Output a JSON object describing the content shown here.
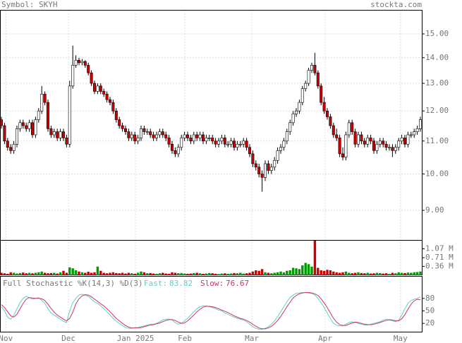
{
  "header": {
    "symbol": "Symbol: SKYH",
    "site": "stockta.com"
  },
  "chart_data": [
    {
      "type": "candlestick",
      "log_scale": true,
      "grid": true,
      "up_color": "#ffffff",
      "down_color": "#cc0000",
      "ylim": [
        8.26,
        16.08
      ],
      "yticks": [
        {
          "value": 15,
          "label": "15.00"
        },
        {
          "value": 14,
          "label": "14.00"
        },
        {
          "value": 13,
          "label": "13.00"
        },
        {
          "value": 12,
          "label": "12.00"
        },
        {
          "value": 11,
          "label": "11.00"
        },
        {
          "value": 10,
          "label": "10.00"
        },
        {
          "value": 9,
          "label": "9.00"
        }
      ],
      "xticks": [
        {
          "value": 1.4,
          "label": "Nov"
        },
        {
          "value": 21.6,
          "label": "Dec"
        },
        {
          "value": 43.2,
          "label": "Jan 2025"
        },
        {
          "value": 59.1,
          "label": "Feb"
        },
        {
          "value": 80.7,
          "label": "Mar"
        },
        {
          "value": 104.3,
          "label": "Apr"
        },
        {
          "value": 128.6,
          "label": "May"
        }
      ],
      "open": [
        11.7,
        11.5,
        11.0,
        10.8,
        10.7,
        10.9,
        11.4,
        11.6,
        11.5,
        11.4,
        11.6,
        11.2,
        11.7,
        12.0,
        12.6,
        12.3,
        11.4,
        11.2,
        11.3,
        11.1,
        11.3,
        11.1,
        10.9,
        12.9,
        13.7,
        13.9,
        13.8,
        13.85,
        13.7,
        13.4,
        13.0,
        12.7,
        12.9,
        12.7,
        12.6,
        12.4,
        12.3,
        12.0,
        11.7,
        11.5,
        11.4,
        11.3,
        11.1,
        11.2,
        11.0,
        11.1,
        11.4,
        11.3,
        11.3,
        11.2,
        11.1,
        11.2,
        11.3,
        11.2,
        11.1,
        10.9,
        10.7,
        10.6,
        10.8,
        11.1,
        11.2,
        11.1,
        11.0,
        11.2,
        11.1,
        11.2,
        11.0,
        11.1,
        11.1,
        11.0,
        10.9,
        11.0,
        11.1,
        10.9,
        10.9,
        11.0,
        10.8,
        10.9,
        10.9,
        11.0,
        10.8,
        10.6,
        10.3,
        10.2,
        10.0,
        9.9,
        10.3,
        10.1,
        10.2,
        10.4,
        10.7,
        10.8,
        11.0,
        11.3,
        11.6,
        11.9,
        12.0,
        12.3,
        12.8,
        13.0,
        13.5,
        13.7,
        13.4,
        12.9,
        12.3,
        12.0,
        11.8,
        11.5,
        11.2,
        11.1,
        10.6,
        10.5,
        11.2,
        11.6,
        11.3,
        10.9,
        11.2,
        11.0,
        10.9,
        11.1,
        11.0,
        10.7,
        10.9,
        11.0,
        10.9,
        10.8,
        10.8,
        10.7,
        10.8,
        11.0,
        11.1,
        10.9,
        11.2,
        11.2,
        11.3,
        11.4
      ],
      "high": [
        11.8,
        11.6,
        11.1,
        10.9,
        11.0,
        11.5,
        11.7,
        11.7,
        11.6,
        11.7,
        11.7,
        11.8,
        12.1,
        12.9,
        12.7,
        12.4,
        11.5,
        11.4,
        11.4,
        11.4,
        11.4,
        11.2,
        13.1,
        14.5,
        14.1,
        14.0,
        13.95,
        13.9,
        13.8,
        13.5,
        13.1,
        13.0,
        13.0,
        12.8,
        12.7,
        12.5,
        12.4,
        12.1,
        11.8,
        11.6,
        11.5,
        11.4,
        11.3,
        11.3,
        11.2,
        11.5,
        11.5,
        11.4,
        11.4,
        11.3,
        11.3,
        11.4,
        11.4,
        11.3,
        11.2,
        11.0,
        10.8,
        10.9,
        11.2,
        11.3,
        11.3,
        11.2,
        11.3,
        11.3,
        11.3,
        11.3,
        11.2,
        11.2,
        11.2,
        11.1,
        11.1,
        11.2,
        11.2,
        11.0,
        11.1,
        11.1,
        11.0,
        11.0,
        11.1,
        11.1,
        10.9,
        10.7,
        10.4,
        10.3,
        10.1,
        10.4,
        10.4,
        10.3,
        10.5,
        10.8,
        10.9,
        11.1,
        11.4,
        11.7,
        12.0,
        12.1,
        12.4,
        12.9,
        13.1,
        13.6,
        13.8,
        14.2,
        13.5,
        13.0,
        12.5,
        12.1,
        11.9,
        11.6,
        11.4,
        11.2,
        10.8,
        11.3,
        11.7,
        11.7,
        11.4,
        11.3,
        11.3,
        11.1,
        11.2,
        11.2,
        11.1,
        11.0,
        11.1,
        11.1,
        11.0,
        10.9,
        10.9,
        10.9,
        11.1,
        11.2,
        11.2,
        11.3,
        11.3,
        11.4,
        11.5,
        11.8
      ],
      "low": [
        11.4,
        10.9,
        10.7,
        10.6,
        10.6,
        10.8,
        11.3,
        11.4,
        11.3,
        11.3,
        11.1,
        11.1,
        11.6,
        11.9,
        12.2,
        11.3,
        11.1,
        11.1,
        11.0,
        11.0,
        11.0,
        10.8,
        10.8,
        12.8,
        13.6,
        13.7,
        13.7,
        13.6,
        13.3,
        12.9,
        12.6,
        12.6,
        12.6,
        12.5,
        12.3,
        12.2,
        11.9,
        11.6,
        11.4,
        11.3,
        11.2,
        11.0,
        11.0,
        10.9,
        10.9,
        11.0,
        11.2,
        11.2,
        11.1,
        11.0,
        11.0,
        11.1,
        11.1,
        11.0,
        10.8,
        10.6,
        10.5,
        10.5,
        10.7,
        11.0,
        11.0,
        10.9,
        10.9,
        11.0,
        11.0,
        10.9,
        10.9,
        11.0,
        10.9,
        10.8,
        10.8,
        10.9,
        10.8,
        10.8,
        10.8,
        10.7,
        10.7,
        10.8,
        10.8,
        10.7,
        10.5,
        10.2,
        10.1,
        9.9,
        9.5,
        9.8,
        10.0,
        10.0,
        10.1,
        10.3,
        10.6,
        10.7,
        10.9,
        11.2,
        11.5,
        11.8,
        11.9,
        12.2,
        12.7,
        12.9,
        13.4,
        13.3,
        12.8,
        12.2,
        11.9,
        11.7,
        11.4,
        11.1,
        11.0,
        10.5,
        10.4,
        10.4,
        11.1,
        11.2,
        10.8,
        10.8,
        10.9,
        10.8,
        10.8,
        10.9,
        10.6,
        10.6,
        10.8,
        10.8,
        10.7,
        10.7,
        10.5,
        10.6,
        10.7,
        10.9,
        10.8,
        10.8,
        11.1,
        11.1,
        11.2,
        11.3
      ],
      "close": [
        11.5,
        11.0,
        10.8,
        10.7,
        10.9,
        11.4,
        11.6,
        11.5,
        11.4,
        11.6,
        11.2,
        11.7,
        12.0,
        12.6,
        12.3,
        11.4,
        11.2,
        11.3,
        11.1,
        11.3,
        11.1,
        10.9,
        12.9,
        13.7,
        13.9,
        13.8,
        13.85,
        13.7,
        13.4,
        13.0,
        12.7,
        12.9,
        12.7,
        12.6,
        12.4,
        12.3,
        12.0,
        11.7,
        11.5,
        11.4,
        11.3,
        11.1,
        11.2,
        11.0,
        11.1,
        11.4,
        11.3,
        11.3,
        11.2,
        11.1,
        11.2,
        11.3,
        11.2,
        11.1,
        10.9,
        10.7,
        10.6,
        10.8,
        11.1,
        11.2,
        11.1,
        11.0,
        11.2,
        11.1,
        11.2,
        11.0,
        11.1,
        11.1,
        11.0,
        10.9,
        11.0,
        11.1,
        10.9,
        10.9,
        11.0,
        10.8,
        10.9,
        10.9,
        11.0,
        10.8,
        10.6,
        10.3,
        10.2,
        10.0,
        9.9,
        10.3,
        10.1,
        10.2,
        10.4,
        10.7,
        10.8,
        11.0,
        11.3,
        11.6,
        11.9,
        12.0,
        12.3,
        12.8,
        13.0,
        13.5,
        13.7,
        13.4,
        12.9,
        12.3,
        12.0,
        11.8,
        11.5,
        11.2,
        11.1,
        10.6,
        10.5,
        11.2,
        11.6,
        11.3,
        10.9,
        11.2,
        11.0,
        10.9,
        11.1,
        11.0,
        10.7,
        10.9,
        11.0,
        10.9,
        10.8,
        10.8,
        10.7,
        10.8,
        11.0,
        11.1,
        10.9,
        11.2,
        11.2,
        11.3,
        11.4,
        11.7
      ]
    },
    {
      "type": "volume",
      "up_color": "#009900",
      "down_color": "#cc0000",
      "ylim": [
        0,
        1.4
      ],
      "yticks": [
        {
          "value": 1.07,
          "label": "1.07 M"
        },
        {
          "value": 0.71,
          "label": "0.71 M"
        },
        {
          "value": 0.36,
          "label": "0.36 M"
        }
      ],
      "values": [
        0.1,
        0.08,
        0.06,
        0.12,
        0.1,
        0.07,
        0.09,
        0.11,
        0.08,
        0.1,
        0.08,
        0.1,
        0.12,
        0.15,
        0.1,
        0.08,
        0.09,
        0.1,
        0.07,
        0.12,
        0.18,
        0.1,
        0.32,
        0.28,
        0.2,
        0.15,
        0.12,
        0.1,
        0.14,
        0.1,
        0.12,
        0.35,
        0.18,
        0.1,
        0.08,
        0.1,
        0.12,
        0.09,
        0.08,
        0.1,
        0.07,
        0.1,
        0.08,
        0.06,
        0.1,
        0.15,
        0.12,
        0.08,
        0.09,
        0.07,
        0.06,
        0.08,
        0.1,
        0.07,
        0.06,
        0.12,
        0.1,
        0.08,
        0.09,
        0.07,
        0.06,
        0.07,
        0.09,
        0.1,
        0.08,
        0.06,
        0.07,
        0.09,
        0.08,
        0.06,
        0.05,
        0.07,
        0.08,
        0.06,
        0.07,
        0.09,
        0.08,
        0.1,
        0.07,
        0.08,
        0.1,
        0.15,
        0.2,
        0.18,
        0.25,
        0.12,
        0.1,
        0.08,
        0.1,
        0.12,
        0.15,
        0.12,
        0.18,
        0.2,
        0.3,
        0.28,
        0.25,
        0.4,
        0.5,
        0.45,
        0.35,
        1.4,
        0.3,
        0.2,
        0.18,
        0.22,
        0.2,
        0.15,
        0.12,
        0.1,
        0.12,
        0.15,
        0.1,
        0.08,
        0.1,
        0.12,
        0.09,
        0.08,
        0.1,
        0.07,
        0.08,
        0.1,
        0.09,
        0.07,
        0.08,
        0.06,
        0.1,
        0.08,
        0.12,
        0.1,
        0.09,
        0.11,
        0.1,
        0.12,
        0.13,
        0.15
      ]
    },
    {
      "type": "stochastic",
      "title": "Full Stochastic %K(14,3) %D(3)",
      "ylim": [
        0,
        100
      ],
      "yticks": [
        80,
        50,
        20
      ],
      "series": [
        {
          "name": "Fast:",
          "color": "#66cccc",
          "last": 83.82,
          "values": [
            60,
            50,
            35,
            30,
            40,
            55,
            70,
            80,
            85,
            82,
            78,
            80,
            82,
            75,
            68,
            55,
            45,
            40,
            35,
            30,
            25,
            22,
            50,
            70,
            80,
            88,
            90,
            88,
            85,
            78,
            72,
            68,
            62,
            55,
            48,
            40,
            32,
            25,
            20,
            15,
            10,
            8,
            8,
            10,
            10,
            12,
            14,
            16,
            18,
            18,
            20,
            24,
            28,
            30,
            30,
            28,
            22,
            18,
            20,
            26,
            32,
            40,
            48,
            55,
            60,
            62,
            62,
            60,
            58,
            55,
            52,
            50,
            45,
            42,
            38,
            35,
            32,
            30,
            28,
            24,
            18,
            12,
            8,
            6,
            6,
            8,
            12,
            18,
            26,
            36,
            48,
            60,
            72,
            82,
            88,
            92,
            93,
            94,
            94,
            93,
            92,
            88,
            80,
            70,
            58,
            45,
            32,
            20,
            16,
            14,
            14,
            18,
            22,
            24,
            22,
            20,
            18,
            16,
            16,
            18,
            20,
            22,
            24,
            28,
            30,
            28,
            26,
            24,
            28,
            40,
            55,
            68,
            75,
            78,
            80,
            83.82
          ]
        },
        {
          "name": "Slow:",
          "color": "#cc3366",
          "last": 76.67,
          "values": [
            65,
            58,
            48,
            38,
            35,
            42,
            55,
            68,
            78,
            82,
            81,
            80,
            80,
            79,
            75,
            66,
            56,
            47,
            40,
            35,
            30,
            26,
            32,
            47,
            67,
            79,
            86,
            89,
            88,
            84,
            78,
            73,
            67,
            62,
            55,
            48,
            40,
            32,
            26,
            20,
            15,
            11,
            9,
            9,
            9,
            10,
            12,
            14,
            16,
            17,
            19,
            21,
            24,
            27,
            29,
            29,
            27,
            23,
            20,
            21,
            26,
            33,
            40,
            48,
            54,
            59,
            61,
            61,
            60,
            58,
            55,
            52,
            49,
            46,
            42,
            38,
            35,
            32,
            30,
            27,
            23,
            18,
            13,
            9,
            7,
            7,
            9,
            13,
            19,
            27,
            37,
            48,
            60,
            71,
            81,
            87,
            91,
            93,
            94,
            94,
            93,
            91,
            87,
            79,
            69,
            58,
            45,
            32,
            23,
            17,
            15,
            15,
            18,
            21,
            23,
            22,
            20,
            18,
            17,
            17,
            18,
            20,
            22,
            25,
            27,
            29,
            28,
            26,
            26,
            31,
            41,
            54,
            66,
            74,
            78,
            76.67
          ]
        }
      ]
    }
  ]
}
